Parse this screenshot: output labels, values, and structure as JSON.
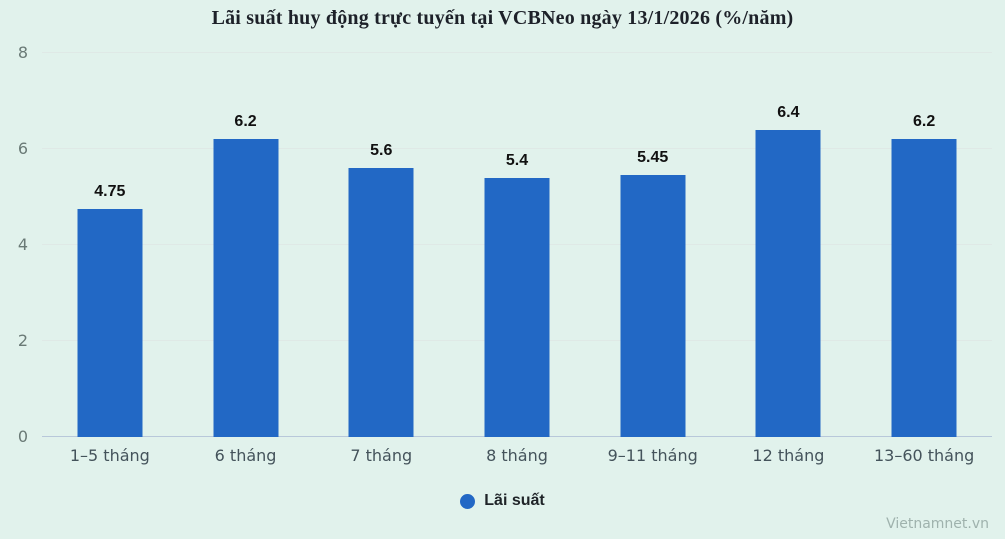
{
  "page": {
    "watermark": "Vietnamnet.vn"
  },
  "chart_data": {
    "type": "bar",
    "title": "Lãi suất huy động trực tuyến tại VCBNeo ngày 13/1/2026 (%/năm)",
    "categories": [
      "1–5 tháng",
      "6 tháng",
      "7 tháng",
      "8 tháng",
      "9–11 tháng",
      "12 tháng",
      "13–60 tháng"
    ],
    "values": [
      4.75,
      6.2,
      5.6,
      5.4,
      5.45,
      6.4,
      6.2
    ],
    "value_labels": [
      "4.75",
      "6.2",
      "5.6",
      "5.4",
      "5.45",
      "6.4",
      "6.2"
    ],
    "series_name": "Lãi suất",
    "xlabel": "",
    "ylabel": "",
    "ylim": [
      0,
      8
    ],
    "yticks": [
      0,
      2,
      4,
      6,
      8
    ],
    "grid": true,
    "legend_position": "bottom",
    "colors": {
      "bar": "#2268c5",
      "background": "#e1f2ec",
      "gridline": "#dfe9e6",
      "baseline": "#b8c8da",
      "ytick_text": "#6a7a76",
      "xtick_text": "#44535b",
      "title_text": "#1d2129",
      "value_text": "#111111",
      "legend_text": "#1f2428",
      "watermark_text": "#9fb2ad"
    }
  }
}
